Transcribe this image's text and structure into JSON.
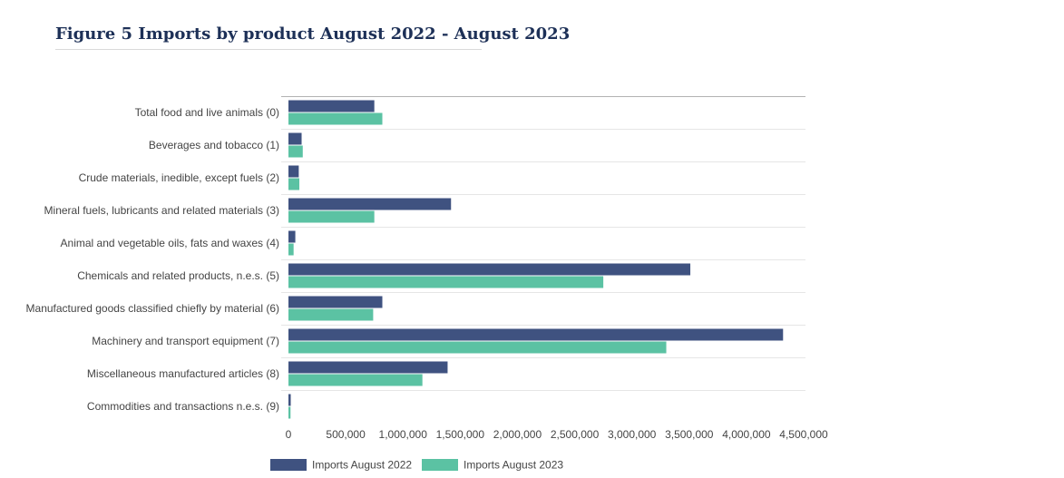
{
  "chart_data": {
    "type": "bar",
    "orientation": "horizontal",
    "title": "Figure 5 Imports by product August 2022 - August 2023",
    "xlabel": "",
    "ylabel": "",
    "xlim": [
      0,
      4500000
    ],
    "xticks": [
      0,
      500000,
      1000000,
      1500000,
      2000000,
      2500000,
      3000000,
      3500000,
      4000000,
      4500000
    ],
    "xtick_labels": [
      "0",
      "500,000",
      "1,000,000",
      "1,500,000",
      "2,000,000",
      "2,500,000",
      "3,000,000",
      "3,500,000",
      "4,000,000",
      "4,500,000"
    ],
    "grid": "horizontal separators between categories",
    "legend_position": "bottom",
    "categories": [
      "Total food and live animals (0)",
      "Beverages and tobacco (1)",
      "Crude materials, inedible, except fuels (2)",
      "Mineral fuels, lubricants and related materials (3)",
      "Animal and vegetable oils, fats and waxes (4)",
      "Chemicals and related products, n.e.s. (5)",
      "Manufactured goods classified chiefly by material (6)",
      "Machinery and transport equipment (7)",
      "Miscellaneous manufactured articles (8)",
      "Commodities and transactions n.e.s. (9)"
    ],
    "series": [
      {
        "name": "Imports August 2022",
        "color": "#3f5280",
        "values": [
          750000,
          115000,
          90000,
          1420000,
          60000,
          3510000,
          820000,
          4320000,
          1390000,
          20000
        ]
      },
      {
        "name": "Imports August 2023",
        "color": "#5bc2a3",
        "values": [
          820000,
          125000,
          95000,
          750000,
          45000,
          2750000,
          740000,
          3300000,
          1170000,
          18000
        ]
      }
    ]
  }
}
